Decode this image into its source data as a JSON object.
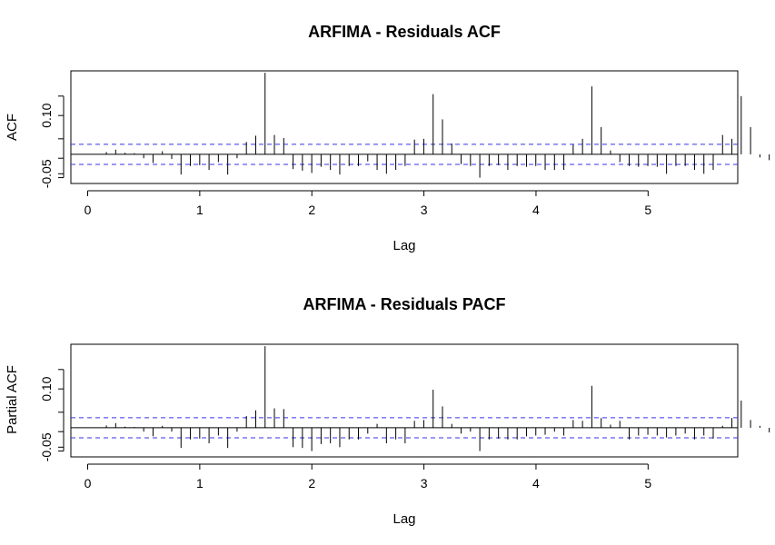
{
  "chart_data": [
    {
      "type": "bar",
      "subtype": "acf-spike",
      "title": "ARFIMA - Residuals ACF",
      "xlabel": "Lag",
      "ylabel": "ACF",
      "xticks": [
        "0",
        "1",
        "2",
        "3",
        "4",
        "5"
      ],
      "yticks": [
        "-0.05",
        "0.10"
      ],
      "xlim": [
        -0.15,
        5.8
      ],
      "ylim": [
        -0.075,
        0.215
      ],
      "confidence_band": [
        0.026,
        -0.026
      ],
      "lag_step": 0.0833,
      "values": [
        0.001,
        0.006,
        0.012,
        0.004,
        0.003,
        -0.01,
        -0.022,
        0.008,
        -0.012,
        -0.052,
        -0.03,
        -0.028,
        -0.04,
        -0.02,
        -0.052,
        -0.01,
        0.032,
        0.048,
        0.21,
        0.05,
        0.042,
        -0.038,
        -0.042,
        -0.048,
        -0.032,
        -0.04,
        -0.052,
        -0.03,
        -0.03,
        -0.018,
        -0.04,
        -0.05,
        -0.04,
        -0.03,
        0.038,
        0.04,
        0.155,
        0.09,
        0.028,
        -0.025,
        -0.03,
        -0.06,
        -0.03,
        -0.028,
        -0.04,
        -0.03,
        -0.032,
        -0.03,
        -0.04,
        -0.04,
        -0.04,
        0.025,
        0.04,
        0.175,
        0.07,
        0.01,
        -0.02,
        -0.03,
        -0.032,
        -0.03,
        -0.032,
        -0.05,
        -0.03,
        -0.03,
        -0.04,
        -0.05,
        -0.04,
        0.05,
        0.04,
        0.15,
        0.07,
        -0.008,
        -0.015,
        -0.05,
        -0.04,
        -0.03,
        -0.032,
        -0.04,
        -0.04,
        -0.042,
        -0.04,
        -0.04,
        -0.04,
        0.035,
        0.065,
        0.165,
        0.045,
        0.03,
        -0.01,
        -0.042,
        -0.03,
        -0.03,
        -0.01,
        -0.028,
        -0.042,
        -0.03
      ]
    },
    {
      "type": "bar",
      "subtype": "pacf-spike",
      "title": "ARFIMA - Residuals PACF",
      "xlabel": "Lag",
      "ylabel": "Partial ACF",
      "xticks": [
        "0",
        "1",
        "2",
        "3",
        "4",
        "5"
      ],
      "yticks": [
        "-0.05",
        "0.10"
      ],
      "xlim": [
        -0.15,
        5.8
      ],
      "ylim": [
        -0.075,
        0.215
      ],
      "confidence_band": [
        0.026,
        -0.026
      ],
      "lag_step": 0.0833,
      "values": [
        0.001,
        0.006,
        0.012,
        0.003,
        0.002,
        -0.01,
        -0.022,
        0.005,
        -0.01,
        -0.052,
        -0.03,
        -0.028,
        -0.04,
        -0.02,
        -0.052,
        -0.01,
        0.03,
        0.045,
        0.21,
        0.05,
        0.048,
        -0.05,
        -0.052,
        -0.06,
        -0.042,
        -0.04,
        -0.05,
        -0.03,
        -0.03,
        -0.015,
        0.01,
        -0.04,
        -0.03,
        -0.04,
        0.018,
        0.02,
        0.098,
        0.055,
        0.01,
        -0.015,
        -0.01,
        -0.06,
        -0.03,
        -0.028,
        -0.03,
        -0.03,
        -0.022,
        -0.02,
        -0.018,
        -0.01,
        -0.02,
        0.02,
        0.018,
        0.108,
        0.025,
        0.008,
        0.018,
        -0.03,
        -0.02,
        -0.018,
        -0.02,
        -0.025,
        -0.02,
        -0.015,
        -0.03,
        -0.02,
        -0.028,
        0.005,
        0.025,
        0.07,
        0.02,
        0.005,
        -0.012,
        -0.05,
        -0.02,
        -0.018,
        -0.02,
        -0.018,
        -0.02,
        0.005,
        0.005,
        -0.015,
        -0.02,
        0.02,
        0.025,
        0.085,
        0.015,
        0.01,
        -0.01,
        -0.012,
        -0.03,
        -0.01,
        -0.005,
        -0.01,
        -0.02,
        -0.015
      ]
    }
  ]
}
